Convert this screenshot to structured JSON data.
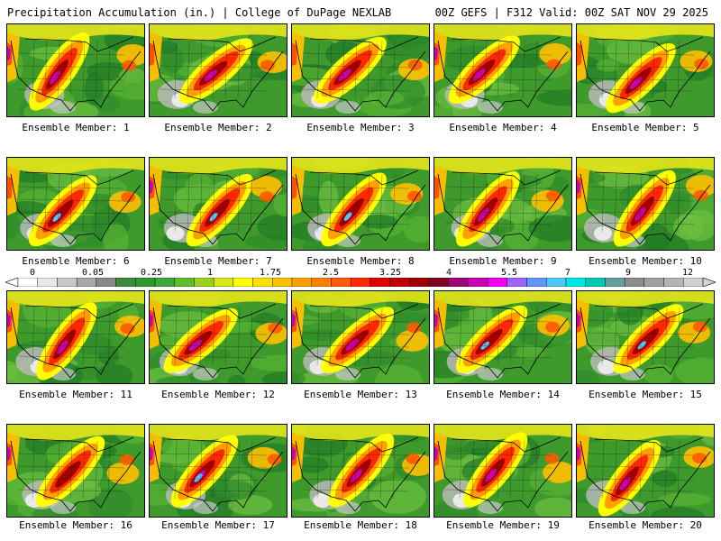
{
  "header": {
    "left_title": "Precipitation Accumulation (in.) | College of DuPage NEXLAB",
    "right_title": "00Z GEFS | F312 Valid: 00Z SAT NOV 29 2025"
  },
  "panels": [
    {
      "label": "Ensemble Member: 1"
    },
    {
      "label": "Ensemble Member: 2"
    },
    {
      "label": "Ensemble Member: 3"
    },
    {
      "label": "Ensemble Member: 4"
    },
    {
      "label": "Ensemble Member: 5"
    },
    {
      "label": "Ensemble Member: 6"
    },
    {
      "label": "Ensemble Member: 7"
    },
    {
      "label": "Ensemble Member: 8"
    },
    {
      "label": "Ensemble Member: 9"
    },
    {
      "label": "Ensemble Member: 10"
    },
    {
      "label": "Ensemble Member: 11"
    },
    {
      "label": "Ensemble Member: 12"
    },
    {
      "label": "Ensemble Member: 13"
    },
    {
      "label": "Ensemble Member: 14"
    },
    {
      "label": "Ensemble Member: 15"
    },
    {
      "label": "Ensemble Member: 16"
    },
    {
      "label": "Ensemble Member: 17"
    },
    {
      "label": "Ensemble Member: 18"
    },
    {
      "label": "Ensemble Member: 19"
    },
    {
      "label": "Ensemble Member: 20"
    }
  ],
  "colorbar": {
    "tick_labels": [
      "0",
      "0.05",
      "0.25",
      "1",
      "1.75",
      "2.5",
      "3.25",
      "4",
      "5.5",
      "7",
      "9",
      "12"
    ],
    "colors": [
      "#ffffff",
      "#e8e8e8",
      "#c8c8c8",
      "#a8a8a8",
      "#888888",
      "#3c8a3c",
      "#2e9a2e",
      "#3aa83a",
      "#5cbf2a",
      "#9ad21e",
      "#d8e61a",
      "#ffff00",
      "#ffe000",
      "#ffc000",
      "#ffa000",
      "#ff8000",
      "#ff5a00",
      "#ff2800",
      "#e00000",
      "#c00000",
      "#a00000",
      "#800020",
      "#a0007a",
      "#c800b4",
      "#f000f0",
      "#a064ff",
      "#6496ff",
      "#50c8ff",
      "#00e6e6",
      "#00c8b4",
      "#64a0a0",
      "#8c8c8c",
      "#a0a0a0",
      "#b4b4b4",
      "#d2d2d2"
    ]
  }
}
